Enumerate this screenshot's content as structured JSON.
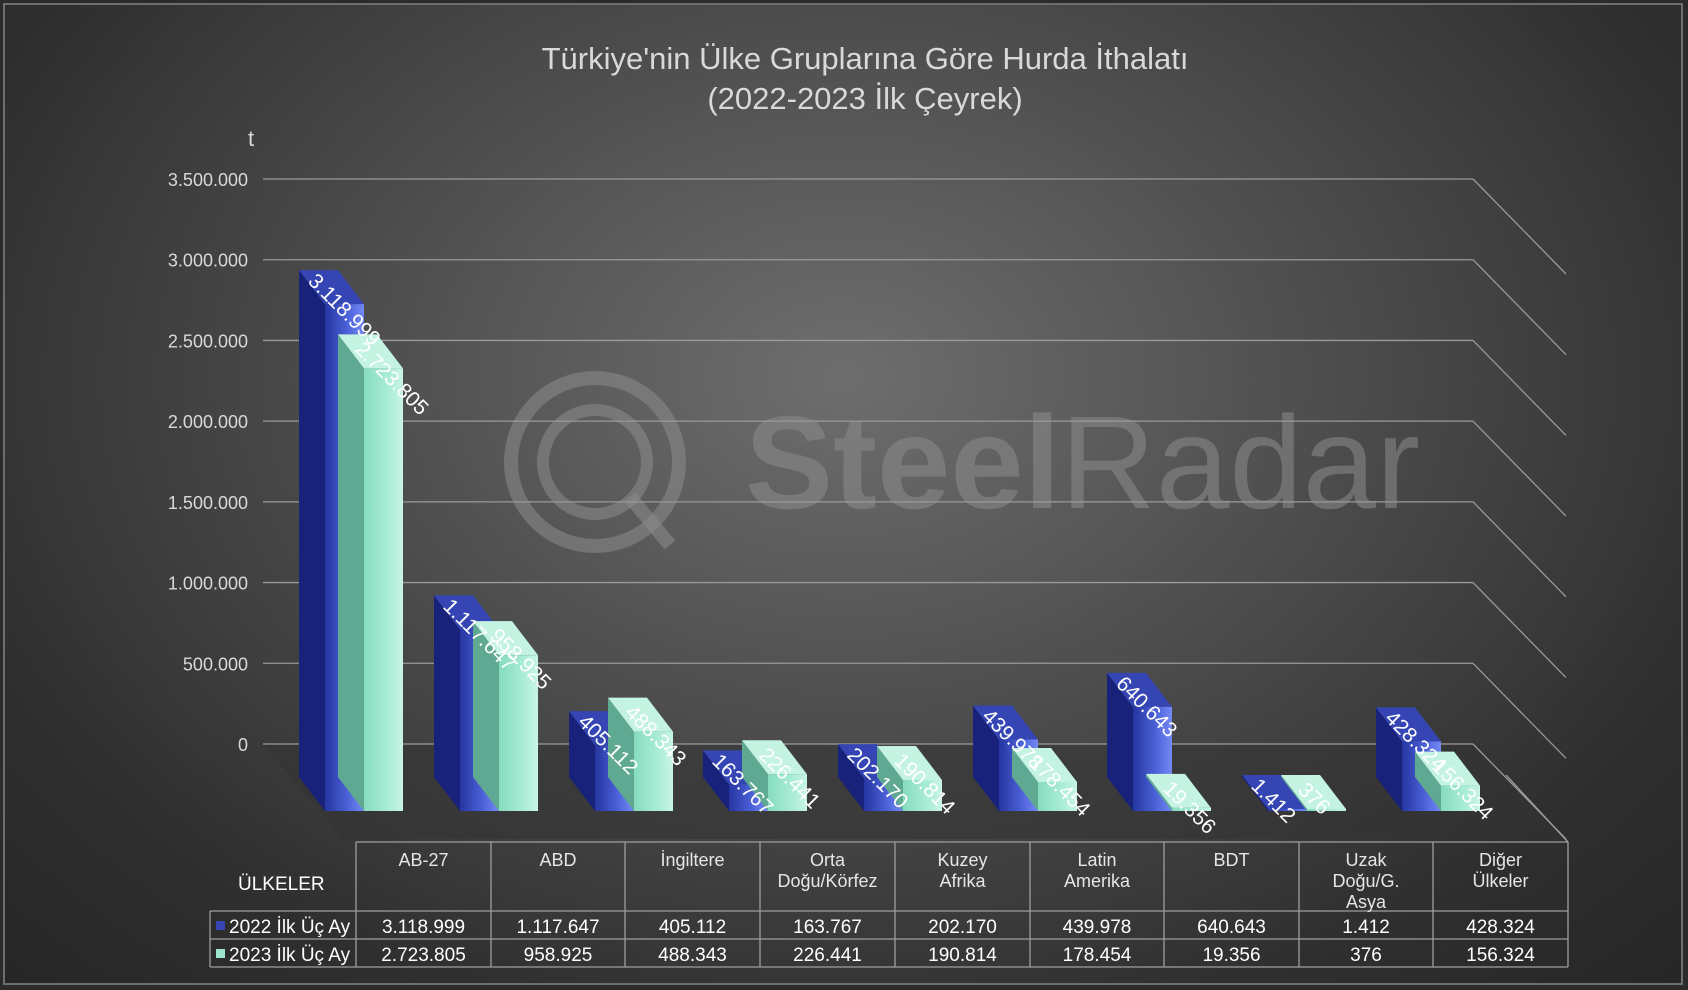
{
  "colors": {
    "series_2022": "#3546b4",
    "series_2022_light": "#6f84f2",
    "series_2022_dark": "#18227a",
    "series_2023": "#9de6cd",
    "series_2023_light": "#c4f3e2",
    "series_2023_dark": "#5fa992",
    "text": "#ffffff",
    "grid": "#9a9a9a"
  },
  "watermark": {
    "brand_bold": "Steel",
    "brand_light": "Radar"
  },
  "chart_data": {
    "type": "bar",
    "title": "Türkiye'nin Ülke Gruplarına Göre Hurda İthalatı",
    "subtitle": "(2022-2023 İlk Çeyrek)",
    "ylabel": "t",
    "ylim": [
      0,
      3500000
    ],
    "yticks": [
      "3.500.000",
      "3.000.000",
      "2.500.000",
      "2.000.000",
      "1.500.000",
      "1.000.000",
      "500.000",
      "0"
    ],
    "ytick_values": [
      3500000,
      3000000,
      2500000,
      2000000,
      1500000,
      1000000,
      500000,
      0
    ],
    "grid": true,
    "table_header": "ÜLKELER",
    "categories": [
      [
        "AB-27"
      ],
      [
        "ABD"
      ],
      [
        "İngiltere"
      ],
      [
        "Orta",
        "Doğu/Körfez"
      ],
      [
        "Kuzey",
        "Afrika"
      ],
      [
        "Latin",
        "Amerika"
      ],
      [
        "BDT"
      ],
      [
        "Uzak",
        "Doğu/G.",
        "Asya"
      ],
      [
        "Diğer",
        "Ülkeler"
      ]
    ],
    "series": [
      {
        "name": "2022 İlk Üç Ay",
        "values": [
          3118999,
          1117647,
          405112,
          163767,
          202170,
          439978,
          640643,
          1412,
          428324
        ],
        "labels": [
          "3.118.999",
          "1.117.647",
          "405.112",
          "163.767",
          "202.170",
          "439.978",
          "640.643",
          "1.412",
          "428.324"
        ]
      },
      {
        "name": "2023 İlk Üç Ay",
        "values": [
          2723805,
          958925,
          488343,
          226441,
          190814,
          178454,
          19356,
          376,
          156324
        ],
        "labels": [
          "2.723.805",
          "958.925",
          "488.343",
          "226.441",
          "190.814",
          "178.454",
          "19.356",
          "376",
          "156.324"
        ]
      }
    ]
  }
}
